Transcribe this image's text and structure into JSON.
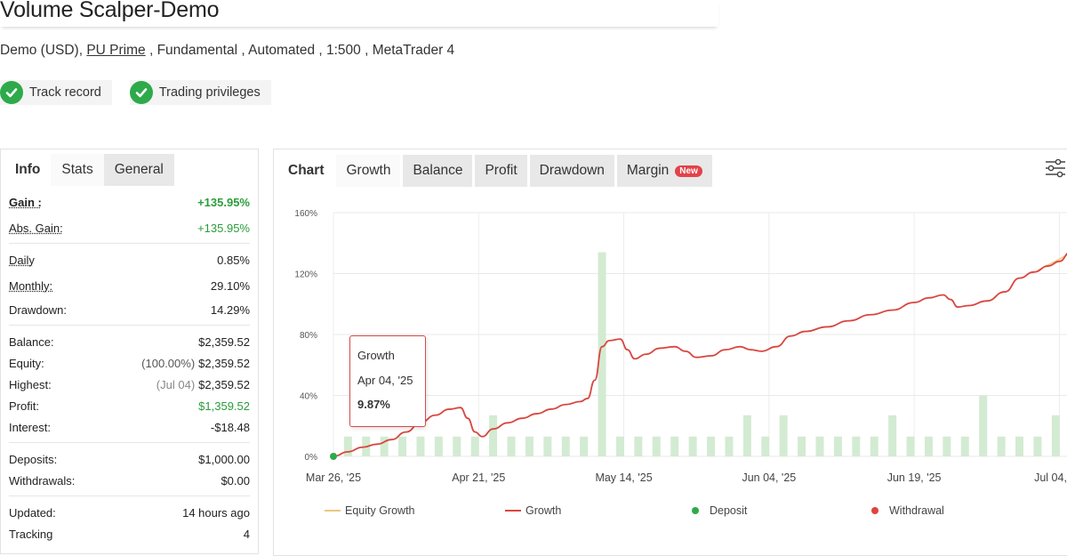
{
  "header": {
    "title": "Volume Scalper-Demo",
    "sub_prefix": "Demo (USD), ",
    "broker": "PU Prime",
    "sub_suffix": " , Fundamental , Automated , 1:500 , MetaTrader 4"
  },
  "badges": [
    {
      "label": "Track record",
      "icon": "check-icon"
    },
    {
      "label": "Trading privileges",
      "icon": "check-icon"
    }
  ],
  "left_tabs": [
    "Info",
    "Stats",
    "General"
  ],
  "stats": {
    "gain": {
      "label": "Gain :",
      "value": "+135.95%"
    },
    "abs_gain": {
      "label": "Abs. Gain:",
      "value": "+135.95%"
    },
    "daily": {
      "label": "Daily",
      "value": "0.85%"
    },
    "monthly": {
      "label": "Monthly:",
      "value": "29.10%"
    },
    "drawdown": {
      "label": "Drawdown:",
      "value": "14.29%"
    },
    "balance": {
      "label": "Balance:",
      "value": "$2,359.52"
    },
    "equity": {
      "label": "Equity:",
      "note": "(100.00%)",
      "value": "$2,359.52"
    },
    "highest": {
      "label": "Highest:",
      "note": "(Jul 04)",
      "value": "$2,359.52"
    },
    "profit": {
      "label": "Profit:",
      "value": "$1,359.52"
    },
    "interest": {
      "label": "Interest:",
      "value": "-$18.48"
    },
    "deposits": {
      "label": "Deposits:",
      "value": "$1,000.00"
    },
    "withdrawals": {
      "label": "Withdrawals:",
      "value": "$0.00"
    },
    "updated": {
      "label": "Updated:",
      "value": "14 hours ago"
    },
    "tracking": {
      "label": "Tracking",
      "value": "4"
    }
  },
  "chart_tabs": {
    "chart": "Chart",
    "growth": "Growth",
    "balance": "Balance",
    "profit": "Profit",
    "drawdown": "Drawdown",
    "margin": "Margin",
    "new_badge": "New"
  },
  "tooltip": {
    "title": "Growth",
    "date": "Apr 04, '25",
    "value": "9.87%"
  },
  "legend": {
    "equity": "Equity Growth",
    "growth": "Growth",
    "deposit": "Deposit",
    "withdrawal": "Withdrawal"
  },
  "colors": {
    "growth": "#d9463f",
    "equity": "#ecc77a",
    "deposit": "#2eaa4a",
    "withdrawal": "#e0443c",
    "bars": "#d3ebd2",
    "green": "#2a9d3a"
  },
  "chart_data": {
    "type": "line",
    "ylabels": [
      "160%",
      "120%",
      "80%",
      "40%",
      "0%"
    ],
    "ylim": [
      0,
      160
    ],
    "xlabels": [
      "Mar 26, '25",
      "Apr 21, '25",
      "May 14, '25",
      "Jun 04, '25",
      "Jun 19, '25",
      "Jul 04, '25"
    ],
    "x_range": [
      0,
      100
    ],
    "x_tick_positions": [
      0,
      20,
      40,
      60,
      80,
      100
    ],
    "growth_series": [
      [
        0,
        0
      ],
      [
        2,
        3
      ],
      [
        4,
        6
      ],
      [
        6,
        8
      ],
      [
        8,
        11
      ],
      [
        10,
        16
      ],
      [
        12,
        22
      ],
      [
        14,
        27
      ],
      [
        16,
        31
      ],
      [
        17.5,
        32
      ],
      [
        18.5,
        25
      ],
      [
        19.5,
        16
      ],
      [
        20.5,
        13
      ],
      [
        22,
        18
      ],
      [
        24,
        22
      ],
      [
        26,
        25
      ],
      [
        28,
        28
      ],
      [
        30,
        31
      ],
      [
        32,
        34
      ],
      [
        34,
        36
      ],
      [
        35,
        38
      ],
      [
        36,
        50
      ],
      [
        37,
        72
      ],
      [
        38,
        76
      ],
      [
        39.5,
        77
      ],
      [
        40.5,
        70
      ],
      [
        41.5,
        64
      ],
      [
        43,
        67
      ],
      [
        45,
        71
      ],
      [
        47,
        72
      ],
      [
        48.5,
        69
      ],
      [
        50,
        65
      ],
      [
        52,
        66
      ],
      [
        54,
        70
      ],
      [
        56,
        72
      ],
      [
        57.5,
        70
      ],
      [
        59,
        69
      ],
      [
        61,
        72
      ],
      [
        63,
        79
      ],
      [
        65,
        82
      ],
      [
        68,
        85
      ],
      [
        71,
        89
      ],
      [
        74,
        93
      ],
      [
        77,
        96
      ],
      [
        80,
        101
      ],
      [
        82,
        104
      ],
      [
        84,
        106
      ],
      [
        85,
        103
      ],
      [
        86,
        98
      ],
      [
        87.5,
        99
      ],
      [
        90,
        102
      ],
      [
        92.5,
        108
      ],
      [
        94.5,
        117
      ],
      [
        96.5,
        121
      ],
      [
        98.5,
        125
      ],
      [
        100,
        128
      ],
      [
        101.5,
        134
      ],
      [
        102,
        137
      ]
    ],
    "equity_series": [
      [
        97,
        122
      ],
      [
        99,
        127
      ],
      [
        101,
        132
      ],
      [
        102,
        137
      ]
    ],
    "volume_bars": [
      {
        "x": 2,
        "v": 13
      },
      {
        "x": 4.5,
        "v": 13
      },
      {
        "x": 7,
        "v": 13
      },
      {
        "x": 9.5,
        "v": 13
      },
      {
        "x": 12,
        "v": 13
      },
      {
        "x": 14.5,
        "v": 13
      },
      {
        "x": 17,
        "v": 13
      },
      {
        "x": 19.5,
        "v": 13
      },
      {
        "x": 22,
        "v": 27
      },
      {
        "x": 24.5,
        "v": 13
      },
      {
        "x": 27,
        "v": 13
      },
      {
        "x": 29.5,
        "v": 13
      },
      {
        "x": 32,
        "v": 13
      },
      {
        "x": 34.5,
        "v": 13
      },
      {
        "x": 37,
        "v": 134
      },
      {
        "x": 39.5,
        "v": 13
      },
      {
        "x": 42,
        "v": 13
      },
      {
        "x": 44.5,
        "v": 13
      },
      {
        "x": 47,
        "v": 13
      },
      {
        "x": 49.5,
        "v": 13
      },
      {
        "x": 52,
        "v": 13
      },
      {
        "x": 54.5,
        "v": 13
      },
      {
        "x": 57,
        "v": 27
      },
      {
        "x": 59.5,
        "v": 13
      },
      {
        "x": 62,
        "v": 27
      },
      {
        "x": 64.5,
        "v": 13
      },
      {
        "x": 67,
        "v": 13
      },
      {
        "x": 69.5,
        "v": 13
      },
      {
        "x": 72,
        "v": 13
      },
      {
        "x": 74.5,
        "v": 13
      },
      {
        "x": 77,
        "v": 27
      },
      {
        "x": 79.5,
        "v": 13
      },
      {
        "x": 82,
        "v": 13
      },
      {
        "x": 84.5,
        "v": 13
      },
      {
        "x": 87,
        "v": 13
      },
      {
        "x": 89.5,
        "v": 40
      },
      {
        "x": 92,
        "v": 13
      },
      {
        "x": 94.5,
        "v": 13
      },
      {
        "x": 97,
        "v": 13
      },
      {
        "x": 99.5,
        "v": 27
      }
    ],
    "deposit_marker": {
      "x": 0,
      "y": 0
    },
    "tooltip_point": {
      "x": 3.8,
      "y": 9.87
    }
  }
}
